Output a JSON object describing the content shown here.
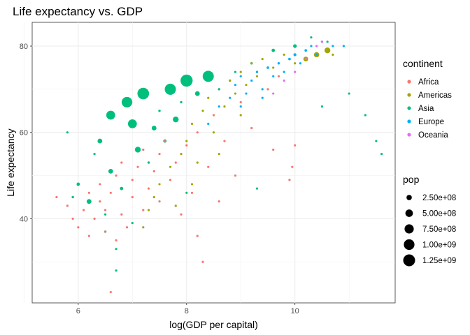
{
  "chart_data": {
    "type": "scatter",
    "title": "Life expectancy vs. GDP",
    "xlabel": "log(GDP per capital)",
    "ylabel": "Life expectancy",
    "xlim": [
      5.15,
      11.85
    ],
    "ylim": [
      20.5,
      85.5
    ],
    "x_ticks": [
      6,
      8,
      10
    ],
    "y_ticks": [
      40,
      60,
      80
    ],
    "x_tick_labels": [
      "6",
      "8",
      "10"
    ],
    "y_tick_labels": [
      "40",
      "60",
      "80"
    ],
    "grid": true,
    "legend_position": "right",
    "color_legend": {
      "title": "continent",
      "entries": [
        {
          "label": "Africa",
          "color": "#F8766D"
        },
        {
          "label": "Americas",
          "color": "#A3A500"
        },
        {
          "label": "Asia",
          "color": "#00BF7D"
        },
        {
          "label": "Europe",
          "color": "#00B0F6"
        },
        {
          "label": "Oceania",
          "color": "#E76BF3"
        }
      ]
    },
    "size_legend": {
      "title": "pop",
      "entries": [
        {
          "label": "2.50e+08",
          "value": 250000000
        },
        {
          "label": "5.00e+08",
          "value": 500000000
        },
        {
          "label": "7.50e+08",
          "value": 750000000
        },
        {
          "label": "1.00e+09",
          "value": 1000000000
        },
        {
          "label": "1.25e+09",
          "value": 1250000000
        }
      ]
    },
    "series": [
      {
        "name": "Africa",
        "color": "#F8766D",
        "points": [
          {
            "x": 5.6,
            "y": 45,
            "pop": 20000000
          },
          {
            "x": 5.8,
            "y": 43,
            "pop": 15000000
          },
          {
            "x": 5.9,
            "y": 40,
            "pop": 10000000
          },
          {
            "x": 6.0,
            "y": 38,
            "pop": 8000000
          },
          {
            "x": 6.1,
            "y": 42,
            "pop": 10000000
          },
          {
            "x": 6.2,
            "y": 46,
            "pop": 20000000
          },
          {
            "x": 6.2,
            "y": 36,
            "pop": 5000000
          },
          {
            "x": 6.3,
            "y": 40,
            "pop": 5000000
          },
          {
            "x": 6.4,
            "y": 44,
            "pop": 20000000
          },
          {
            "x": 6.4,
            "y": 48,
            "pop": 10000000
          },
          {
            "x": 6.5,
            "y": 37,
            "pop": 5000000
          },
          {
            "x": 6.5,
            "y": 42,
            "pop": 10000000
          },
          {
            "x": 6.6,
            "y": 23,
            "pop": 5000000
          },
          {
            "x": 6.6,
            "y": 46,
            "pop": 30000000
          },
          {
            "x": 6.7,
            "y": 50,
            "pop": 20000000
          },
          {
            "x": 6.7,
            "y": 35,
            "pop": 5000000
          },
          {
            "x": 6.8,
            "y": 41,
            "pop": 10000000
          },
          {
            "x": 6.8,
            "y": 53,
            "pop": 20000000
          },
          {
            "x": 6.9,
            "y": 38,
            "pop": 5000000
          },
          {
            "x": 7.0,
            "y": 45,
            "pop": 10000000
          },
          {
            "x": 7.0,
            "y": 49,
            "pop": 10000000
          },
          {
            "x": 7.1,
            "y": 52,
            "pop": 20000000
          },
          {
            "x": 7.2,
            "y": 56,
            "pop": 10000000
          },
          {
            "x": 7.2,
            "y": 42,
            "pop": 5000000
          },
          {
            "x": 7.3,
            "y": 47,
            "pop": 10000000
          },
          {
            "x": 7.4,
            "y": 51,
            "pop": 20000000
          },
          {
            "x": 7.5,
            "y": 55,
            "pop": 10000000
          },
          {
            "x": 7.5,
            "y": 44,
            "pop": 5000000
          },
          {
            "x": 7.6,
            "y": 58,
            "pop": 10000000
          },
          {
            "x": 7.7,
            "y": 49,
            "pop": 5000000
          },
          {
            "x": 7.8,
            "y": 53,
            "pop": 10000000
          },
          {
            "x": 7.9,
            "y": 41,
            "pop": 5000000
          },
          {
            "x": 8.0,
            "y": 57,
            "pop": 10000000
          },
          {
            "x": 8.1,
            "y": 46,
            "pop": 5000000
          },
          {
            "x": 8.2,
            "y": 36,
            "pop": 5000000
          },
          {
            "x": 8.2,
            "y": 60,
            "pop": 10000000
          },
          {
            "x": 8.3,
            "y": 30,
            "pop": 5000000
          },
          {
            "x": 8.4,
            "y": 52,
            "pop": 5000000
          },
          {
            "x": 8.5,
            "y": 64,
            "pop": 10000000
          },
          {
            "x": 8.6,
            "y": 44,
            "pop": 5000000
          },
          {
            "x": 8.7,
            "y": 58,
            "pop": 5000000
          },
          {
            "x": 8.9,
            "y": 50,
            "pop": 5000000
          },
          {
            "x": 9.0,
            "y": 67,
            "pop": 10000000
          },
          {
            "x": 9.2,
            "y": 61,
            "pop": 5000000
          },
          {
            "x": 9.5,
            "y": 70,
            "pop": 10000000
          },
          {
            "x": 9.6,
            "y": 56,
            "pop": 5000000
          },
          {
            "x": 9.9,
            "y": 49,
            "pop": 5000000
          },
          {
            "x": 9.95,
            "y": 52,
            "pop": 5000000
          },
          {
            "x": 10.0,
            "y": 57,
            "pop": 5000000
          },
          {
            "x": 9.7,
            "y": 73,
            "pop": 5000000
          }
        ]
      },
      {
        "name": "Americas",
        "color": "#A3A500",
        "points": [
          {
            "x": 7.2,
            "y": 38,
            "pop": 5000000
          },
          {
            "x": 7.3,
            "y": 42,
            "pop": 5000000
          },
          {
            "x": 7.4,
            "y": 45,
            "pop": 5000000
          },
          {
            "x": 7.5,
            "y": 48,
            "pop": 5000000
          },
          {
            "x": 7.7,
            "y": 52,
            "pop": 10000000
          },
          {
            "x": 7.8,
            "y": 43,
            "pop": 5000000
          },
          {
            "x": 7.9,
            "y": 55,
            "pop": 10000000
          },
          {
            "x": 8.0,
            "y": 58,
            "pop": 20000000
          },
          {
            "x": 8.1,
            "y": 62,
            "pop": 10000000
          },
          {
            "x": 8.2,
            "y": 53,
            "pop": 5000000
          },
          {
            "x": 8.3,
            "y": 65,
            "pop": 10000000
          },
          {
            "x": 8.4,
            "y": 68,
            "pop": 20000000
          },
          {
            "x": 8.5,
            "y": 60,
            "pop": 10000000
          },
          {
            "x": 8.6,
            "y": 70,
            "pop": 30000000
          },
          {
            "x": 8.7,
            "y": 66,
            "pop": 10000000
          },
          {
            "x": 8.8,
            "y": 72,
            "pop": 50000000
          },
          {
            "x": 8.9,
            "y": 69,
            "pop": 20000000
          },
          {
            "x": 9.0,
            "y": 74,
            "pop": 30000000
          },
          {
            "x": 9.1,
            "y": 71,
            "pop": 20000000
          },
          {
            "x": 9.2,
            "y": 76,
            "pop": 40000000
          },
          {
            "x": 9.3,
            "y": 73,
            "pop": 20000000
          },
          {
            "x": 9.4,
            "y": 77,
            "pop": 30000000
          },
          {
            "x": 9.6,
            "y": 75,
            "pop": 20000000
          },
          {
            "x": 9.8,
            "y": 78,
            "pop": 20000000
          },
          {
            "x": 10.0,
            "y": 76,
            "pop": 30000000
          },
          {
            "x": 10.2,
            "y": 77,
            "pop": 200000000
          },
          {
            "x": 10.4,
            "y": 78,
            "pop": 250000000
          },
          {
            "x": 10.6,
            "y": 79,
            "pop": 300000000
          },
          {
            "x": 10.7,
            "y": 78,
            "pop": 30000000
          },
          {
            "x": 9.0,
            "y": 64,
            "pop": 10000000
          },
          {
            "x": 8.6,
            "y": 55,
            "pop": 5000000
          },
          {
            "x": 8.1,
            "y": 48,
            "pop": 5000000
          }
        ]
      },
      {
        "name": "Asia",
        "color": "#00BF7D",
        "points": [
          {
            "x": 5.8,
            "y": 60,
            "pop": 5000000
          },
          {
            "x": 5.9,
            "y": 45,
            "pop": 50000000
          },
          {
            "x": 6.0,
            "y": 48,
            "pop": 100000000
          },
          {
            "x": 6.2,
            "y": 44,
            "pop": 200000000
          },
          {
            "x": 6.3,
            "y": 55,
            "pop": 20000000
          },
          {
            "x": 6.4,
            "y": 58,
            "pop": 200000000
          },
          {
            "x": 6.5,
            "y": 41,
            "pop": 20000000
          },
          {
            "x": 6.5,
            "y": 37,
            "pop": 50000000
          },
          {
            "x": 6.6,
            "y": 64,
            "pop": 700000000
          },
          {
            "x": 6.6,
            "y": 51,
            "pop": 200000000
          },
          {
            "x": 6.7,
            "y": 33,
            "pop": 10000000
          },
          {
            "x": 6.7,
            "y": 28,
            "pop": 5000000
          },
          {
            "x": 6.8,
            "y": 47,
            "pop": 100000000
          },
          {
            "x": 6.9,
            "y": 67,
            "pop": 1000000000
          },
          {
            "x": 7.0,
            "y": 62,
            "pop": 700000000
          },
          {
            "x": 7.1,
            "y": 56,
            "pop": 300000000
          },
          {
            "x": 7.2,
            "y": 69,
            "pop": 1200000000
          },
          {
            "x": 7.3,
            "y": 53,
            "pop": 50000000
          },
          {
            "x": 7.4,
            "y": 61,
            "pop": 200000000
          },
          {
            "x": 7.5,
            "y": 65,
            "pop": 50000000
          },
          {
            "x": 7.6,
            "y": 58,
            "pop": 100000000
          },
          {
            "x": 7.7,
            "y": 70,
            "pop": 1100000000
          },
          {
            "x": 7.8,
            "y": 63,
            "pop": 300000000
          },
          {
            "x": 7.9,
            "y": 67,
            "pop": 50000000
          },
          {
            "x": 8.0,
            "y": 72,
            "pop": 1300000000
          },
          {
            "x": 8.2,
            "y": 69,
            "pop": 200000000
          },
          {
            "x": 8.4,
            "y": 73,
            "pop": 1100000000
          },
          {
            "x": 8.6,
            "y": 70,
            "pop": 20000000
          },
          {
            "x": 8.9,
            "y": 74,
            "pop": 20000000
          },
          {
            "x": 9.2,
            "y": 76,
            "pop": 50000000
          },
          {
            "x": 9.6,
            "y": 79,
            "pop": 100000000
          },
          {
            "x": 10.0,
            "y": 80,
            "pop": 120000000
          },
          {
            "x": 10.3,
            "y": 82,
            "pop": 5000000
          },
          {
            "x": 10.6,
            "y": 81,
            "pop": 5000000
          },
          {
            "x": 11.0,
            "y": 69,
            "pop": 2000000
          },
          {
            "x": 11.3,
            "y": 64,
            "pop": 2000000
          },
          {
            "x": 11.5,
            "y": 58,
            "pop": 2000000
          },
          {
            "x": 11.6,
            "y": 55,
            "pop": 2000000
          },
          {
            "x": 10.5,
            "y": 66,
            "pop": 2000000
          },
          {
            "x": 9.3,
            "y": 47,
            "pop": 5000000
          },
          {
            "x": 8.0,
            "y": 46,
            "pop": 10000000
          },
          {
            "x": 7.0,
            "y": 39,
            "pop": 20000000
          }
        ]
      },
      {
        "name": "Europe",
        "color": "#00B0F6",
        "points": [
          {
            "x": 8.4,
            "y": 62,
            "pop": 10000000
          },
          {
            "x": 8.6,
            "y": 66,
            "pop": 20000000
          },
          {
            "x": 8.8,
            "y": 68,
            "pop": 30000000
          },
          {
            "x": 8.9,
            "y": 71,
            "pop": 20000000
          },
          {
            "x": 9.0,
            "y": 73,
            "pop": 40000000
          },
          {
            "x": 9.1,
            "y": 69,
            "pop": 10000000
          },
          {
            "x": 9.2,
            "y": 72,
            "pop": 20000000
          },
          {
            "x": 9.3,
            "y": 74,
            "pop": 50000000
          },
          {
            "x": 9.4,
            "y": 70,
            "pop": 10000000
          },
          {
            "x": 9.5,
            "y": 75,
            "pop": 60000000
          },
          {
            "x": 9.6,
            "y": 73,
            "pop": 20000000
          },
          {
            "x": 9.7,
            "y": 76,
            "pop": 50000000
          },
          {
            "x": 9.8,
            "y": 74,
            "pop": 10000000
          },
          {
            "x": 9.9,
            "y": 77,
            "pop": 60000000
          },
          {
            "x": 10.0,
            "y": 78,
            "pop": 80000000
          },
          {
            "x": 10.1,
            "y": 76,
            "pop": 10000000
          },
          {
            "x": 10.2,
            "y": 79,
            "pop": 60000000
          },
          {
            "x": 10.3,
            "y": 80,
            "pop": 20000000
          },
          {
            "x": 10.4,
            "y": 78,
            "pop": 10000000
          },
          {
            "x": 10.5,
            "y": 81,
            "pop": 5000000
          },
          {
            "x": 10.7,
            "y": 80,
            "pop": 5000000
          },
          {
            "x": 10.9,
            "y": 80,
            "pop": 5000000
          },
          {
            "x": 9.0,
            "y": 66,
            "pop": 20000000
          },
          {
            "x": 9.4,
            "y": 68,
            "pop": 10000000
          }
        ]
      },
      {
        "name": "Oceania",
        "color": "#E76BF3",
        "points": [
          {
            "x": 9.6,
            "y": 69,
            "pop": 10000000
          },
          {
            "x": 9.8,
            "y": 72,
            "pop": 15000000
          },
          {
            "x": 10.0,
            "y": 74,
            "pop": 15000000
          },
          {
            "x": 10.2,
            "y": 77,
            "pop": 20000000
          },
          {
            "x": 10.4,
            "y": 80,
            "pop": 20000000
          },
          {
            "x": 10.5,
            "y": 81,
            "pop": 5000000
          }
        ]
      }
    ]
  }
}
